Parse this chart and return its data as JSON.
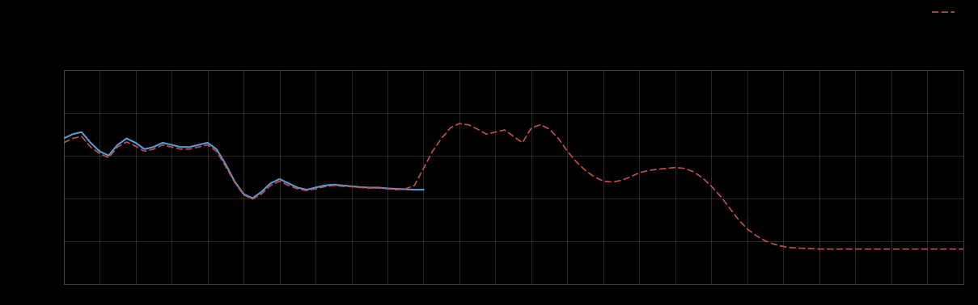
{
  "background_color": "#000000",
  "plot_bg_color": "#000000",
  "grid_color": "#555555",
  "blue_line_color": "#5B9BD5",
  "red_line_color": "#C0504D",
  "xlim": [
    0,
    100
  ],
  "ylim": [
    0,
    5
  ],
  "figsize": [
    12.09,
    3.78
  ],
  "dpi": 100,
  "n_xgrid": 26,
  "n_ygrid": 6,
  "blue_x": [
    0,
    1,
    2,
    3,
    4,
    5,
    6,
    7,
    8,
    9,
    10,
    11,
    12,
    13,
    14,
    15,
    16,
    17,
    18,
    19,
    20,
    21,
    22,
    23,
    24,
    25,
    26,
    27,
    28,
    29,
    30,
    31,
    32,
    33,
    34,
    35,
    36,
    37,
    38,
    39,
    40
  ],
  "blue_y": [
    3.4,
    3.5,
    3.55,
    3.3,
    3.1,
    3.0,
    3.25,
    3.4,
    3.3,
    3.15,
    3.2,
    3.3,
    3.25,
    3.2,
    3.2,
    3.25,
    3.3,
    3.15,
    2.8,
    2.4,
    2.1,
    2.0,
    2.15,
    2.35,
    2.45,
    2.35,
    2.25,
    2.2,
    2.25,
    2.3,
    2.32,
    2.3,
    2.28,
    2.26,
    2.25,
    2.25,
    2.23,
    2.22,
    2.21,
    2.2,
    2.2
  ],
  "red_x": [
    0,
    1,
    2,
    3,
    4,
    5,
    6,
    7,
    8,
    9,
    10,
    11,
    12,
    13,
    14,
    15,
    16,
    17,
    18,
    19,
    20,
    21,
    22,
    23,
    24,
    25,
    26,
    27,
    28,
    29,
    30,
    31,
    32,
    33,
    34,
    35,
    36,
    37,
    38,
    39,
    40,
    41,
    42,
    43,
    44,
    45,
    46,
    47,
    48,
    49,
    50,
    51,
    52,
    53,
    54,
    55,
    56,
    57,
    58,
    59,
    60,
    61,
    62,
    63,
    64,
    65,
    66,
    67,
    68,
    69,
    70,
    71,
    72,
    73,
    74,
    75,
    76,
    77,
    78,
    79,
    80,
    81,
    82,
    83,
    84,
    85,
    86,
    87,
    88,
    89,
    90,
    91,
    92,
    93,
    94,
    95,
    96,
    97,
    98,
    99,
    100
  ],
  "red_y": [
    3.3,
    3.4,
    3.45,
    3.2,
    3.05,
    2.95,
    3.2,
    3.32,
    3.22,
    3.1,
    3.15,
    3.25,
    3.2,
    3.15,
    3.15,
    3.2,
    3.25,
    3.1,
    2.75,
    2.38,
    2.08,
    1.98,
    2.1,
    2.3,
    2.4,
    2.3,
    2.22,
    2.18,
    2.22,
    2.27,
    2.3,
    2.28,
    2.27,
    2.25,
    2.24,
    2.24,
    2.22,
    2.2,
    2.22,
    2.3,
    2.7,
    3.1,
    3.4,
    3.65,
    3.75,
    3.72,
    3.62,
    3.5,
    3.55,
    3.6,
    3.45,
    3.3,
    3.65,
    3.72,
    3.62,
    3.4,
    3.1,
    2.85,
    2.65,
    2.5,
    2.4,
    2.38,
    2.42,
    2.5,
    2.6,
    2.65,
    2.68,
    2.7,
    2.72,
    2.7,
    2.62,
    2.48,
    2.28,
    2.05,
    1.78,
    1.5,
    1.28,
    1.12,
    1.0,
    0.92,
    0.87,
    0.84,
    0.83,
    0.82,
    0.81,
    0.81,
    0.81,
    0.81,
    0.81,
    0.81,
    0.81,
    0.81,
    0.81,
    0.81,
    0.81,
    0.81,
    0.81,
    0.81,
    0.81,
    0.81,
    0.81
  ]
}
